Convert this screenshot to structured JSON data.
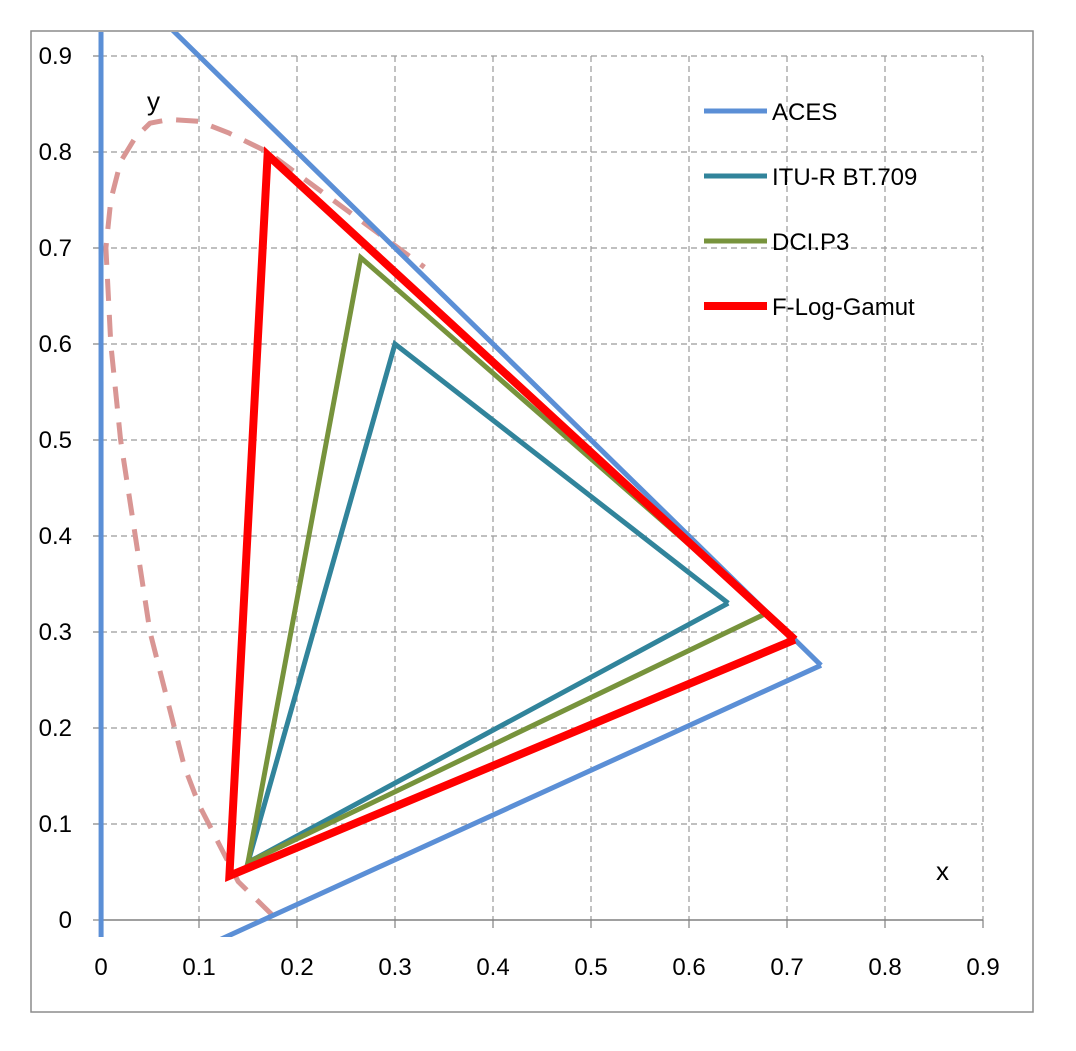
{
  "chart_data": {
    "type": "line",
    "title": "",
    "xlabel": "x",
    "ylabel": "y",
    "xlim": [
      0,
      0.9
    ],
    "ylim": [
      0,
      0.9
    ],
    "x_ticks": [
      "0",
      "0.1",
      "0.2",
      "0.3",
      "0.4",
      "0.5",
      "0.6",
      "0.7",
      "0.8",
      "0.9"
    ],
    "y_ticks": [
      "0",
      "0.1",
      "0.2",
      "0.3",
      "0.4",
      "0.5",
      "0.6",
      "0.7",
      "0.8",
      "0.9"
    ],
    "grid": true,
    "legend_position": "top-right",
    "series": [
      {
        "name": "ACES",
        "color": "#5b8fd6",
        "style": "solid",
        "points": [
          [
            0.7347,
            0.2653
          ],
          [
            0.0,
            1.0
          ],
          [
            0.0001,
            -0.077
          ],
          [
            0.7347,
            0.2653
          ]
        ]
      },
      {
        "name": "ITU-R BT.709",
        "color": "#31849b",
        "style": "solid",
        "points": [
          [
            0.64,
            0.33
          ],
          [
            0.3,
            0.6
          ],
          [
            0.15,
            0.06
          ],
          [
            0.64,
            0.33
          ]
        ]
      },
      {
        "name": "DCI.P3",
        "color": "#77933c",
        "style": "solid",
        "points": [
          [
            0.68,
            0.32
          ],
          [
            0.265,
            0.69
          ],
          [
            0.15,
            0.06
          ],
          [
            0.68,
            0.32
          ]
        ]
      },
      {
        "name": "F-Log-Gamut",
        "color": "#ff0000",
        "style": "solid",
        "points": [
          [
            0.708,
            0.292
          ],
          [
            0.17,
            0.797
          ],
          [
            0.131,
            0.046
          ],
          [
            0.708,
            0.292
          ]
        ]
      },
      {
        "name": "",
        "color": "#d99694",
        "style": "dashed",
        "points": [
          [
            0.175,
            0.005
          ],
          [
            0.165,
            0.015
          ],
          [
            0.14,
            0.04
          ],
          [
            0.12,
            0.08
          ],
          [
            0.1,
            0.12
          ],
          [
            0.085,
            0.16
          ],
          [
            0.07,
            0.22
          ],
          [
            0.05,
            0.3
          ],
          [
            0.035,
            0.4
          ],
          [
            0.02,
            0.5
          ],
          [
            0.01,
            0.6
          ],
          [
            0.005,
            0.7
          ],
          [
            0.01,
            0.75
          ],
          [
            0.02,
            0.79
          ],
          [
            0.035,
            0.815
          ],
          [
            0.05,
            0.83
          ],
          [
            0.07,
            0.834
          ],
          [
            0.1,
            0.832
          ],
          [
            0.13,
            0.82
          ],
          [
            0.17,
            0.8
          ],
          [
            0.21,
            0.77
          ],
          [
            0.25,
            0.74
          ],
          [
            0.29,
            0.71
          ],
          [
            0.33,
            0.68
          ]
        ]
      }
    ]
  }
}
